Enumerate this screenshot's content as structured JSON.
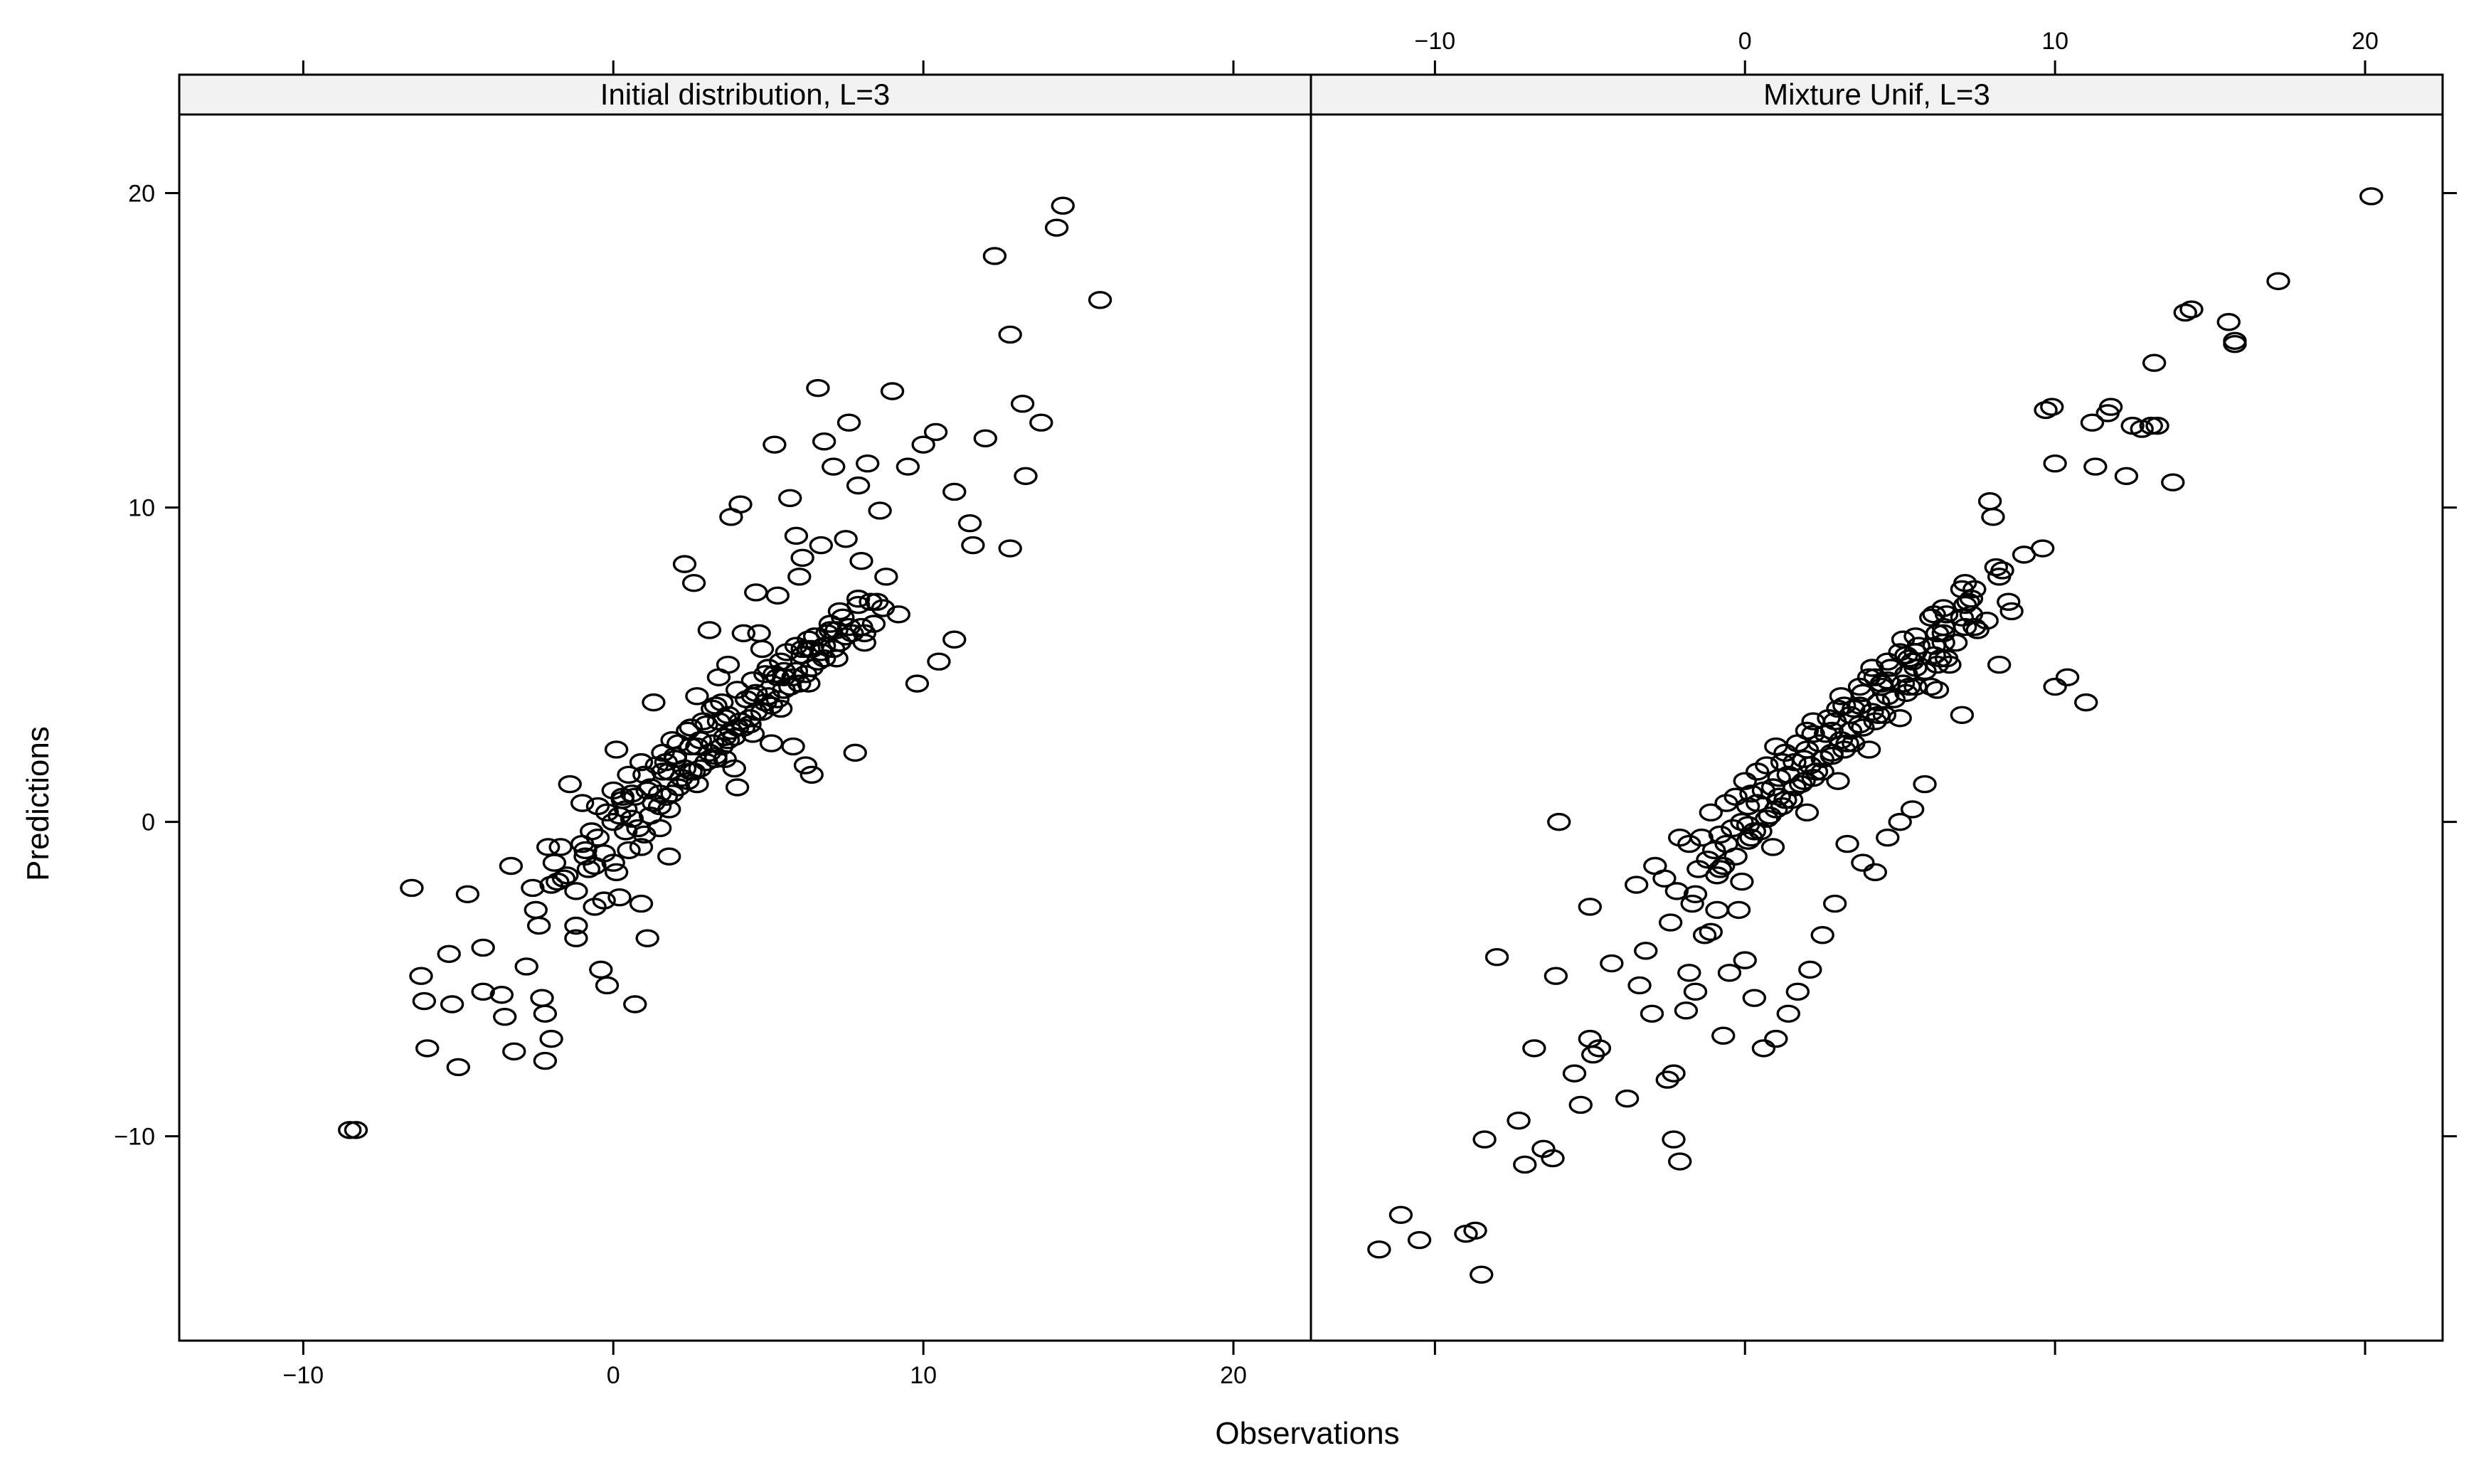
{
  "chart_data": {
    "type": "scatter",
    "xlabel": "Observations",
    "ylabel": "Predictions",
    "xlim": [
      -14,
      22.5
    ],
    "ylim": [
      -16.5,
      22.5
    ],
    "grid": false,
    "legend": "none",
    "point_shape": "open-circle",
    "color": "#000000",
    "x_ticks": [
      -10,
      0,
      10,
      20
    ],
    "y_ticks": [
      -10,
      0,
      10,
      20
    ],
    "x_tick_labels": [
      "−10",
      "0",
      "10",
      "20"
    ],
    "y_tick_labels": [
      "−10",
      "0",
      "10",
      "20"
    ],
    "panels": [
      {
        "strip": "Initial distribution, L=3",
        "x": [
          -8.5,
          -8.3,
          -6.5,
          -6.2,
          -6.1,
          -6.0,
          -5.3,
          -5.2,
          -5.0,
          -4.7,
          -4.2,
          -4.2,
          -3.6,
          -3.5,
          -3.3,
          -3.2,
          -2.8,
          -2.6,
          -2.4,
          -2.3,
          -2.2,
          -2.2,
          -2.0,
          -2.0,
          -1.9,
          -1.7,
          -1.5,
          -1.2,
          -1.2,
          -1.0,
          -0.8,
          -0.6,
          -0.4,
          -0.3,
          -0.2,
          0.0,
          0.2,
          0.7,
          0.9,
          1.1,
          1.5,
          1.8,
          2.3,
          2.6,
          3.1,
          3.3,
          3.7,
          3.8,
          4.1,
          4.2,
          4.6,
          4.8,
          5.2,
          5.7,
          5.9,
          6.1,
          6.6,
          6.8,
          7.1,
          7.6,
          7.9,
          8.2,
          8.6,
          9.0,
          9.5,
          10.0,
          10.4,
          11.0,
          11.5,
          12.0,
          12.3,
          12.8,
          13.2,
          13.8,
          14.3,
          14.5,
          15.7,
          11.0,
          11.6,
          12.8,
          13.3,
          2.0,
          2.5,
          3.3,
          4.0,
          0.3,
          -0.5,
          0.1,
          0.5,
          1.3,
          2.7,
          3.4,
          4.7,
          5.3,
          6.0,
          6.7,
          7.5,
          8.0,
          5.5,
          6.3,
          7.2,
          8.1,
          9.2,
          9.8,
          10.5,
          3.0,
          3.6,
          4.3,
          5.8,
          6.4,
          7.8,
          1.7,
          2.4,
          3.9,
          4.4,
          5.1,
          6.2,
          -0.7,
          0.3,
          1.0,
          1.9,
          2.9,
          3.8,
          4.9,
          5.6,
          6.5,
          7.4,
          8.4,
          -1.4,
          -0.2,
          0.6,
          1.4,
          2.1,
          3.2,
          4.0,
          5.0,
          5.9,
          6.9,
          -2.1,
          -1.0,
          0.0,
          0.9,
          1.6,
          2.5,
          3.5,
          4.5,
          5.4,
          6.3,
          7.3,
          8.3,
          -1.6,
          -0.5,
          0.4,
          1.2,
          2.0,
          2.8,
          3.7,
          4.6,
          5.5,
          6.4,
          -0.9,
          0.2,
          1.1,
          1.8,
          2.7,
          3.6,
          4.5,
          5.3,
          6.1,
          7.0,
          7.9,
          0.5,
          1.5,
          2.4,
          3.3,
          4.2,
          5.1,
          6.0,
          6.8,
          7.7,
          8.7,
          1.0,
          1.9,
          2.8,
          3.7,
          4.6,
          5.5,
          6.4,
          7.3,
          0.1,
          0.8,
          1.7,
          2.6,
          3.5,
          4.4,
          5.3,
          6.2,
          7.1,
          8.0,
          -1.2,
          -0.3,
          0.6,
          1.5,
          2.3,
          3.2,
          4.1,
          5.0,
          5.9,
          6.8,
          -2.5,
          -1.8,
          -0.9,
          0.0,
          0.7,
          1.6,
          2.5,
          3.4,
          4.3,
          5.2,
          6.1,
          7.0,
          7.9,
          8.8,
          -0.6,
          0.4,
          1.3,
          2.2,
          3.1,
          4.0,
          4.9,
          5.8,
          6.7,
          7.6,
          8.5,
          1.2,
          2.1,
          3.0,
          3.9,
          4.8,
          5.7,
          6.6,
          7.5,
          0.9,
          1.8,
          2.7,
          3.6,
          4.5,
          5.4,
          6.3,
          7.2,
          8.1
        ],
        "y": [
          -9.8,
          -9.8,
          -2.1,
          -4.9,
          -5.7,
          -7.2,
          -4.2,
          -5.8,
          -7.8,
          -2.3,
          -5.4,
          -4.0,
          -5.5,
          -6.2,
          -1.4,
          -7.3,
          -4.6,
          -2.1,
          -3.3,
          -5.6,
          -6.1,
          -7.6,
          -6.9,
          -2.0,
          -1.3,
          -0.8,
          -1.7,
          -3.3,
          -3.7,
          -0.7,
          -1.5,
          -2.7,
          -4.7,
          -2.5,
          -5.2,
          -1.3,
          -2.4,
          -5.8,
          -2.6,
          -3.7,
          -0.2,
          -1.1,
          8.2,
          7.6,
          6.1,
          3.7,
          5.0,
          9.7,
          10.1,
          6.0,
          7.3,
          5.5,
          12.0,
          10.3,
          9.1,
          8.4,
          13.8,
          12.1,
          11.3,
          12.7,
          10.7,
          11.4,
          9.9,
          13.7,
          11.3,
          12.0,
          12.4,
          10.5,
          9.5,
          12.2,
          18.0,
          15.5,
          13.3,
          12.7,
          18.9,
          19.6,
          16.6,
          5.8,
          8.8,
          8.7,
          11.0,
          2.1,
          1.6,
          2.0,
          1.1,
          0.8,
          0.5,
          2.3,
          1.5,
          3.8,
          4.0,
          4.6,
          6.0,
          7.2,
          7.8,
          8.8,
          9.0,
          8.3,
          4.6,
          5.5,
          6.1,
          5.7,
          6.6,
          4.4,
          5.1,
          3.1,
          2.7,
          3.9,
          2.4,
          1.5,
          2.2,
          1.9,
          2.9,
          1.7,
          3.3,
          2.5,
          1.8,
          -0.3,
          0.7,
          1.5,
          2.6,
          3.2,
          2.9,
          4.7,
          5.4,
          5.9,
          6.5,
          6.3,
          1.2,
          0.3,
          0.9,
          1.8,
          2.5,
          3.6,
          4.2,
          4.9,
          5.6,
          6.0,
          -0.8,
          0.6,
          1.0,
          1.9,
          2.2,
          3.0,
          3.8,
          4.5,
          5.1,
          5.8,
          6.7,
          7.0,
          -1.8,
          -0.5,
          0.4,
          1.1,
          2.0,
          2.6,
          3.4,
          4.1,
          4.8,
          5.5,
          -1.1,
          0.2,
          1.0,
          1.6,
          2.4,
          3.3,
          4.0,
          4.6,
          5.3,
          6.1,
          6.9,
          -0.9,
          0.5,
          1.3,
          2.1,
          3.0,
          3.7,
          4.4,
          5.2,
          6.0,
          6.8,
          -0.4,
          0.9,
          1.7,
          2.6,
          3.5,
          4.2,
          4.9,
          5.7,
          -1.6,
          -0.2,
          0.8,
          1.6,
          2.4,
          3.1,
          3.9,
          4.7,
          5.5,
          6.2,
          -2.2,
          -1.0,
          0.1,
          0.9,
          1.7,
          2.5,
          3.2,
          4.0,
          4.8,
          5.6,
          -2.8,
          -1.9,
          -0.9,
          0.0,
          0.8,
          1.6,
          2.4,
          3.2,
          3.9,
          4.7,
          5.5,
          6.3,
          7.1,
          7.8,
          -1.4,
          -0.3,
          0.6,
          1.4,
          2.2,
          3.0,
          3.8,
          4.6,
          5.4,
          6.2,
          7.0,
          0.2,
          1.1,
          1.9,
          2.7,
          3.5,
          4.3,
          5.1,
          5.9,
          -0.8,
          0.4,
          1.2,
          2.0,
          2.8,
          3.6,
          4.4,
          5.2,
          6.0
        ]
      },
      {
        "strip": "Mixture Unif, L=3",
        "x": [
          -11.8,
          -11.1,
          -10.5,
          -9.0,
          -8.7,
          -8.5,
          -8.4,
          -8.0,
          -7.3,
          -7.1,
          -6.8,
          -6.5,
          -6.2,
          -6.1,
          -6.0,
          -5.5,
          -5.3,
          -5.0,
          -5.0,
          -4.9,
          -4.7,
          -4.3,
          -3.8,
          -3.5,
          -3.4,
          -3.0,
          -2.9,
          -2.5,
          -2.3,
          -2.3,
          -2.1,
          -1.9,
          -1.8,
          -1.6,
          -1.3,
          -1.1,
          -0.9,
          -0.7,
          -0.5,
          -0.2,
          0.0,
          0.3,
          0.6,
          1.0,
          1.4,
          1.7,
          2.1,
          2.5,
          2.9,
          3.3,
          3.8,
          4.2,
          4.6,
          5.0,
          5.4,
          5.8,
          6.2,
          6.6,
          7.0,
          7.4,
          7.8,
          8.2,
          8.6,
          9.0,
          9.6,
          10.0,
          10.4,
          11.0,
          11.3,
          11.7,
          12.3,
          12.8,
          13.2,
          14.2,
          14.4,
          15.6,
          15.8,
          15.8,
          17.2,
          20.2,
          9.7,
          9.9,
          11.8,
          12.5,
          13.1,
          13.3,
          13.8,
          11.2,
          10.0,
          7.9,
          8.0,
          -2.1,
          -1.1,
          0.0,
          1.0,
          2.0,
          3.0,
          4.0,
          5.0,
          6.0,
          7.0,
          -1.8,
          -0.6,
          0.4,
          1.3,
          2.2,
          3.1,
          4.1,
          5.1,
          6.1,
          7.1,
          8.1,
          -2.6,
          -1.4,
          -0.3,
          0.7,
          1.7,
          2.7,
          3.7,
          4.6,
          5.5,
          6.4,
          -1.0,
          0.1,
          1.1,
          2.0,
          2.9,
          3.8,
          4.7,
          5.6,
          6.5,
          7.4,
          -0.8,
          0.2,
          1.2,
          2.2,
          3.2,
          4.2,
          5.2,
          6.2,
          7.2,
          8.2,
          -1.5,
          -0.4,
          0.6,
          1.6,
          2.6,
          3.5,
          4.4,
          5.3,
          6.2,
          7.1,
          -2.2,
          -1.2,
          -0.1,
          0.9,
          1.9,
          2.8,
          3.7,
          4.6,
          5.5,
          6.4,
          7.3,
          8.3,
          -0.6,
          0.4,
          1.4,
          2.4,
          3.4,
          4.4,
          5.4,
          6.4,
          0.1,
          1.1,
          2.1,
          3.1,
          4.1,
          5.1,
          6.1,
          7.1,
          -1.7,
          -0.7,
          0.3,
          1.3,
          2.3,
          3.3,
          4.3,
          5.3,
          6.3,
          -0.9,
          0.1,
          1.0,
          1.9,
          2.8,
          3.7,
          4.6,
          5.5,
          6.4,
          7.3,
          0.7,
          1.6,
          2.5,
          3.4,
          4.3,
          5.2,
          6.1,
          7.0,
          -3.2,
          -2.4,
          -1.6,
          -0.8,
          0.2,
          1.2,
          2.2,
          3.2,
          4.2,
          5.2,
          6.2,
          -0.3,
          0.8,
          1.8,
          2.8,
          3.8,
          4.8,
          5.8,
          6.8,
          0.5,
          1.5,
          2.5,
          3.5,
          4.5,
          5.5,
          6.5,
          7.5,
          8.5,
          -0.1,
          0.9,
          2.0,
          3.0,
          4.0,
          5.0,
          6.0
        ],
        "y": [
          -13.6,
          -12.5,
          -13.3,
          -13.1,
          -13.0,
          -14.4,
          -10.1,
          -4.3,
          -9.5,
          -10.9,
          -7.2,
          -10.4,
          -10.7,
          -4.9,
          0.0,
          -8.0,
          -9.0,
          -6.9,
          -2.7,
          -7.4,
          -7.2,
          -4.5,
          -8.8,
          -2.0,
          -5.2,
          -6.1,
          -1.4,
          -8.2,
          -8.0,
          -10.1,
          -10.8,
          -6.0,
          -4.8,
          -5.4,
          -3.6,
          -3.5,
          -2.8,
          -6.8,
          -4.8,
          -2.8,
          -4.4,
          -5.6,
          -7.2,
          -6.9,
          -6.1,
          -5.4,
          -4.7,
          -3.6,
          -2.6,
          -0.7,
          -1.3,
          -1.6,
          -0.5,
          0.0,
          0.4,
          1.2,
          4.2,
          5.0,
          3.4,
          6.2,
          6.4,
          5.0,
          6.7,
          8.5,
          8.7,
          4.3,
          4.6,
          3.8,
          11.3,
          13.0,
          11.0,
          12.5,
          14.6,
          16.2,
          16.3,
          15.9,
          15.2,
          15.3,
          17.2,
          19.9,
          13.1,
          13.2,
          13.2,
          12.6,
          12.6,
          12.6,
          10.8,
          12.7,
          11.4,
          10.2,
          9.7,
          -0.5,
          0.3,
          1.3,
          2.4,
          2.9,
          3.6,
          4.6,
          5.4,
          6.5,
          7.4,
          -0.7,
          0.6,
          1.6,
          2.2,
          3.2,
          4.0,
          4.9,
          5.8,
          6.6,
          7.6,
          8.1,
          -1.8,
          -0.5,
          0.8,
          1.8,
          2.5,
          3.3,
          4.3,
          5.1,
          5.9,
          6.8,
          -0.9,
          0.5,
          1.4,
          2.3,
          3.2,
          4.1,
          4.9,
          5.6,
          6.6,
          7.4,
          -0.4,
          0.9,
          1.9,
          2.8,
          3.7,
          4.6,
          5.3,
          6.0,
          7.0,
          7.8,
          -1.5,
          -0.2,
          1.0,
          1.9,
          2.8,
          3.6,
          4.4,
          5.2,
          6.0,
          6.9,
          -2.2,
          -1.2,
          0.0,
          1.1,
          2.0,
          2.9,
          3.7,
          4.5,
          5.4,
          6.2,
          7.1,
          8.0,
          -0.7,
          0.6,
          1.5,
          2.5,
          3.4,
          4.3,
          5.1,
          6.0,
          -0.1,
          0.8,
          1.8,
          2.6,
          3.5,
          4.4,
          5.3,
          6.2,
          -2.6,
          -1.4,
          -0.3,
          0.7,
          1.6,
          2.5,
          3.4,
          4.3,
          5.2,
          -1.7,
          -0.6,
          0.4,
          1.3,
          2.2,
          3.1,
          4.0,
          4.9,
          5.7,
          6.6,
          0.1,
          1.1,
          2.0,
          2.9,
          3.8,
          4.7,
          5.6,
          6.5,
          -4.1,
          -3.2,
          -2.3,
          -1.5,
          -0.5,
          0.5,
          1.4,
          2.3,
          3.2,
          4.1,
          5.0,
          -1.1,
          0.2,
          1.2,
          2.1,
          3.0,
          3.9,
          4.8,
          5.7,
          -0.3,
          0.7,
          1.6,
          2.5,
          3.4,
          4.3,
          5.2,
          6.1,
          7.0,
          -1.9,
          -0.8,
          0.3,
          1.3,
          2.3,
          3.3,
          4.3
        ]
      }
    ]
  }
}
